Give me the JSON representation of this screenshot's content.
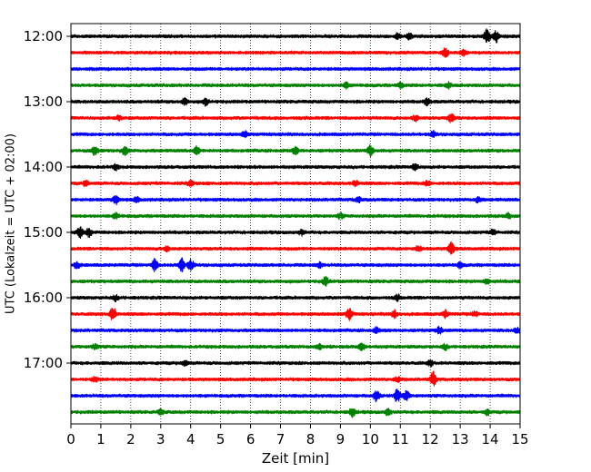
{
  "chart_data": {
    "type": "line",
    "title": "",
    "xlabel": "Zeit  [min]",
    "ylabel": "UTC (Lokalzeit = UTC + 02:00)",
    "xlim": [
      0,
      15
    ],
    "x_ticks": [
      0,
      1,
      2,
      3,
      4,
      5,
      6,
      7,
      8,
      9,
      10,
      11,
      12,
      13,
      14,
      15
    ],
    "x_tick_labels": [
      "0",
      "1",
      "2",
      "3",
      "4",
      "5",
      "6",
      "7",
      "8",
      "9",
      "10",
      "11",
      "12",
      "13",
      "14",
      "15"
    ],
    "y_tick_labels": [
      "12:00",
      "13:00",
      "14:00",
      "15:00",
      "16:00",
      "17:00"
    ],
    "y_tick_hours": [
      12,
      13,
      14,
      15,
      16,
      17
    ],
    "trace_interval_minutes": 15,
    "grid": "vertical dotted at each minute",
    "legend": "none",
    "color_cycle": [
      "#000000",
      "#ff0000",
      "#0000ff",
      "#008000"
    ],
    "traces": [
      {
        "start": "12:00",
        "color": "#000000",
        "bursts": [
          [
            10.9,
            0.3
          ],
          [
            11.3,
            0.3
          ],
          [
            13.9,
            0.8
          ],
          [
            14.2,
            0.7
          ]
        ]
      },
      {
        "start": "12:15",
        "color": "#ff0000",
        "bursts": [
          [
            12.5,
            0.5
          ],
          [
            13.1,
            0.3
          ]
        ]
      },
      {
        "start": "12:30",
        "color": "#0000ff",
        "bursts": []
      },
      {
        "start": "12:45",
        "color": "#008000",
        "bursts": [
          [
            9.2,
            0.3
          ],
          [
            11.0,
            0.3
          ],
          [
            12.6,
            0.3
          ]
        ]
      },
      {
        "start": "13:00",
        "color": "#000000",
        "bursts": [
          [
            3.8,
            0.4
          ],
          [
            4.5,
            0.4
          ],
          [
            11.9,
            0.4
          ]
        ]
      },
      {
        "start": "13:15",
        "color": "#ff0000",
        "bursts": [
          [
            1.6,
            0.3
          ],
          [
            11.5,
            0.3
          ],
          [
            12.7,
            0.5
          ]
        ]
      },
      {
        "start": "13:30",
        "color": "#0000ff",
        "bursts": [
          [
            5.8,
            0.3
          ],
          [
            12.1,
            0.3
          ]
        ]
      },
      {
        "start": "13:45",
        "color": "#008000",
        "bursts": [
          [
            0.8,
            0.5
          ],
          [
            1.8,
            0.5
          ],
          [
            4.2,
            0.5
          ],
          [
            7.5,
            0.4
          ],
          [
            10.0,
            0.6
          ]
        ]
      },
      {
        "start": "14:00",
        "color": "#000000",
        "bursts": [
          [
            1.5,
            0.3
          ],
          [
            11.5,
            0.4
          ]
        ]
      },
      {
        "start": "14:15",
        "color": "#ff0000",
        "bursts": [
          [
            0.5,
            0.3
          ],
          [
            4.0,
            0.3
          ],
          [
            9.5,
            0.3
          ],
          [
            11.9,
            0.3
          ]
        ]
      },
      {
        "start": "14:30",
        "color": "#0000ff",
        "bursts": [
          [
            1.5,
            0.5
          ],
          [
            2.2,
            0.3
          ],
          [
            9.6,
            0.3
          ],
          [
            13.6,
            0.3
          ]
        ]
      },
      {
        "start": "14:45",
        "color": "#008000",
        "bursts": [
          [
            1.5,
            0.3
          ],
          [
            9.0,
            0.3
          ],
          [
            14.6,
            0.3
          ]
        ]
      },
      {
        "start": "15:00",
        "color": "#000000",
        "bursts": [
          [
            0.3,
            0.6
          ],
          [
            0.6,
            0.5
          ],
          [
            7.7,
            0.3
          ],
          [
            14.1,
            0.3
          ]
        ]
      },
      {
        "start": "15:15",
        "color": "#ff0000",
        "bursts": [
          [
            3.2,
            0.3
          ],
          [
            11.6,
            0.3
          ],
          [
            12.7,
            0.8
          ]
        ]
      },
      {
        "start": "15:30",
        "color": "#0000ff",
        "bursts": [
          [
            0.2,
            0.4
          ],
          [
            2.8,
            0.7
          ],
          [
            3.7,
            0.8
          ],
          [
            4.0,
            0.6
          ],
          [
            8.3,
            0.3
          ],
          [
            13.0,
            0.3
          ]
        ]
      },
      {
        "start": "15:45",
        "color": "#008000",
        "bursts": [
          [
            8.5,
            0.5
          ],
          [
            13.9,
            0.3
          ]
        ]
      },
      {
        "start": "16:00",
        "color": "#000000",
        "bursts": [
          [
            1.5,
            0.3
          ],
          [
            10.9,
            0.3
          ]
        ]
      },
      {
        "start": "16:15",
        "color": "#ff0000",
        "bursts": [
          [
            1.4,
            0.8
          ],
          [
            9.3,
            0.7
          ],
          [
            10.8,
            0.4
          ],
          [
            12.5,
            0.4
          ],
          [
            13.5,
            0.3
          ]
        ]
      },
      {
        "start": "16:30",
        "color": "#0000ff",
        "bursts": [
          [
            10.2,
            0.3
          ],
          [
            12.3,
            0.4
          ],
          [
            14.9,
            0.3
          ]
        ]
      },
      {
        "start": "16:45",
        "color": "#008000",
        "bursts": [
          [
            0.8,
            0.3
          ],
          [
            8.3,
            0.3
          ],
          [
            9.7,
            0.5
          ],
          [
            12.5,
            0.3
          ]
        ]
      },
      {
        "start": "17:00",
        "color": "#000000",
        "bursts": [
          [
            3.8,
            0.3
          ],
          [
            12.0,
            0.3
          ]
        ]
      },
      {
        "start": "17:15",
        "color": "#ff0000",
        "bursts": [
          [
            0.8,
            0.3
          ],
          [
            10.9,
            0.3
          ],
          [
            12.1,
            0.8
          ]
        ]
      },
      {
        "start": "17:30",
        "color": "#0000ff",
        "bursts": [
          [
            10.2,
            0.6
          ],
          [
            10.9,
            0.8
          ],
          [
            11.2,
            0.6
          ]
        ]
      },
      {
        "start": "17:45",
        "color": "#008000",
        "bursts": [
          [
            3.0,
            0.3
          ],
          [
            9.4,
            0.5
          ],
          [
            10.6,
            0.4
          ],
          [
            13.9,
            0.3
          ]
        ]
      }
    ]
  }
}
